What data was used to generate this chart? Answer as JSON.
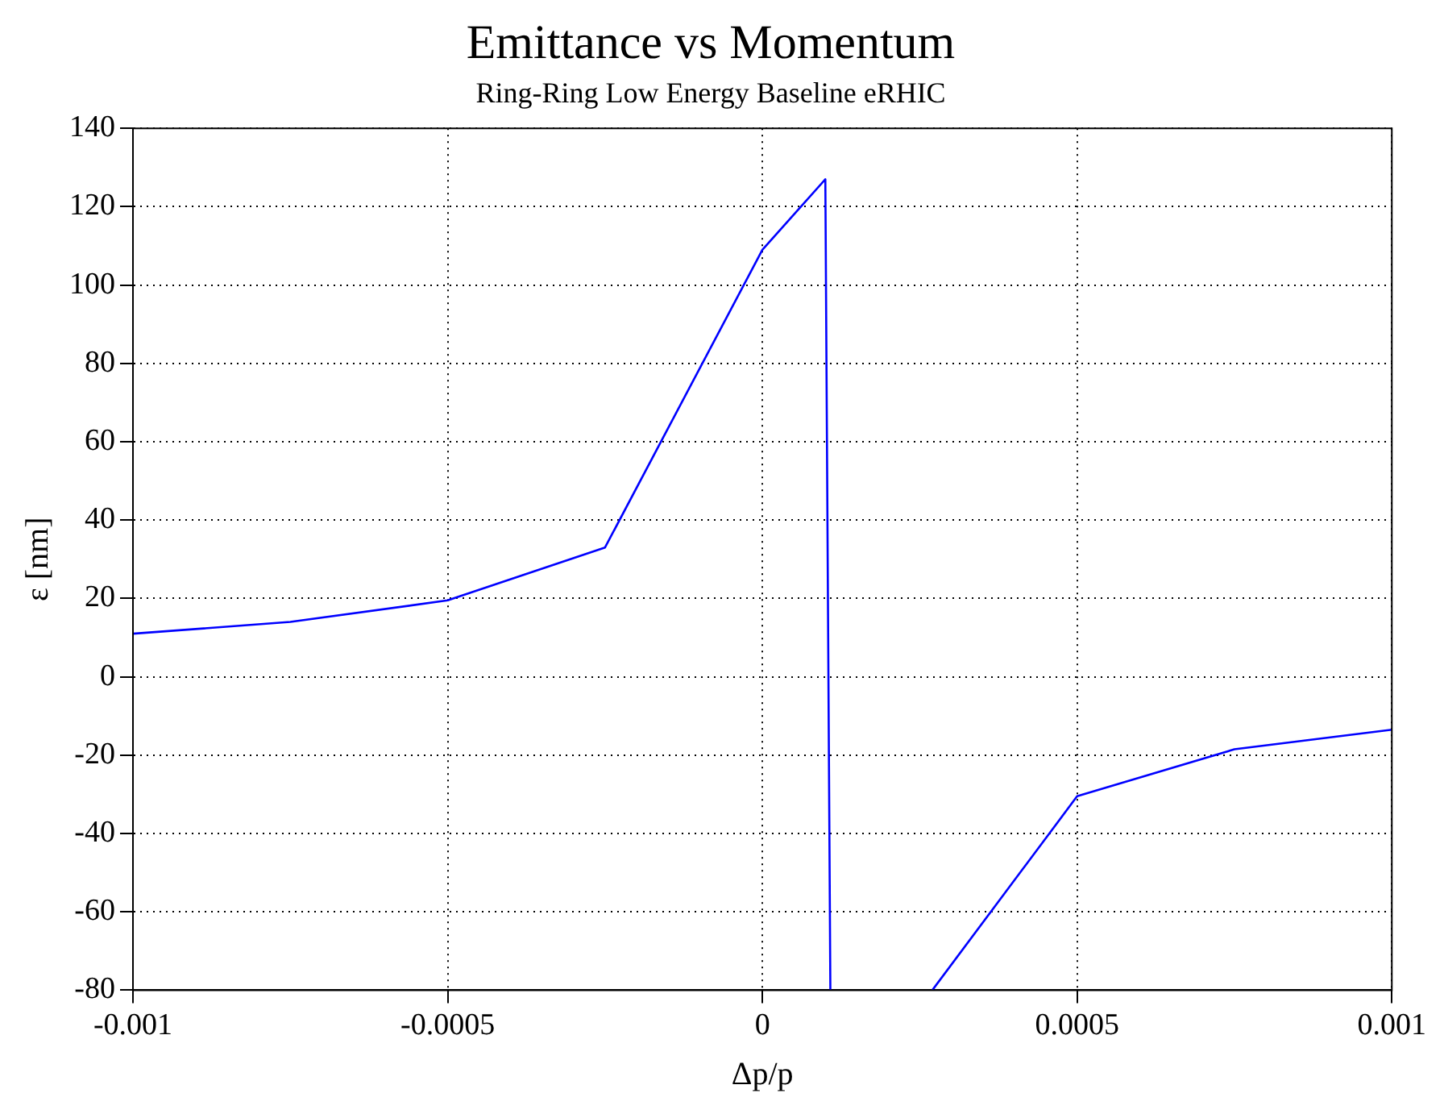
{
  "chart_data": {
    "type": "line",
    "title": "Emittance vs Momentum",
    "subtitle": "Ring-Ring Low Energy Baseline eRHIC",
    "xlabel": "Δp/p",
    "ylabel": "ε [nm]",
    "x": [
      -0.001,
      -0.00075,
      -0.0005,
      -0.00025,
      0,
      0.0001,
      0.000108,
      null,
      0.00027,
      0.0005,
      0.00075,
      0.001
    ],
    "series": [
      {
        "color": "#0000ff",
        "values": [
          11,
          14,
          19.5,
          33,
          109,
          127,
          -80,
          null,
          -80,
          -30.5,
          -18.5,
          -13.5
        ]
      }
    ],
    "xlim": [
      -0.001,
      0.001
    ],
    "xticks": [
      -0.001,
      -0.0005,
      0,
      0.0005,
      0.001
    ],
    "ylim": [
      -80,
      140
    ],
    "yticks": [
      -80,
      -60,
      -40,
      -20,
      0,
      20,
      40,
      60,
      80,
      100,
      120,
      140
    ],
    "grid": true,
    "legend": false,
    "marker": "none",
    "line_style": "solid"
  }
}
